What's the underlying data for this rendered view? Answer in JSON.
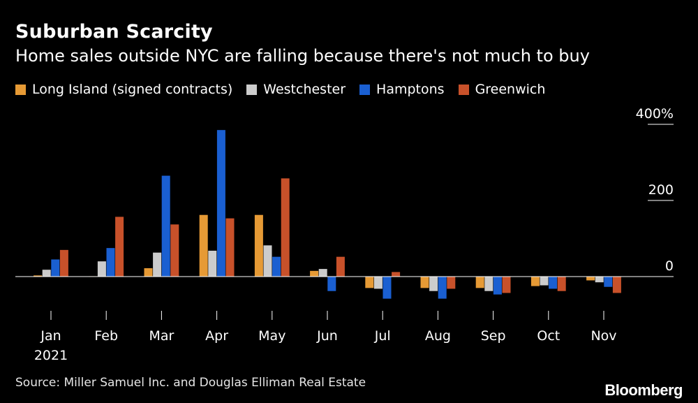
{
  "header": {
    "title": "Suburban Scarcity",
    "subtitle": "Home sales outside NYC are falling because there's not much to buy"
  },
  "legend": {
    "items": [
      {
        "label": "Long Island (signed contracts)",
        "color": "#e69a35"
      },
      {
        "label": "Westchester",
        "color": "#cccccc"
      },
      {
        "label": "Hamptons",
        "color": "#1a5fd1"
      },
      {
        "label": "Greenwich",
        "color": "#c8512a"
      }
    ]
  },
  "footer": {
    "source": "Source: Miller Samuel Inc. and Douglas Elliman Real Estate",
    "brand": "Bloomberg"
  },
  "chart_data": {
    "type": "bar",
    "title": "Suburban Scarcity",
    "subtitle": "Home sales outside NYC are falling because there's not much to buy",
    "categories": [
      "Jan",
      "Feb",
      "Mar",
      "Apr",
      "May",
      "Jun",
      "Jul",
      "Aug",
      "Sep",
      "Oct",
      "Nov"
    ],
    "year_label": "2021",
    "y_ticks": [
      {
        "value": 400,
        "label": "400%"
      },
      {
        "value": 200,
        "label": "200"
      },
      {
        "value": 0,
        "label": "0"
      }
    ],
    "ylim": [
      -120,
      400
    ],
    "series": [
      {
        "name": "Long Island (signed contracts)",
        "color": "#e69a35",
        "values": [
          3,
          1,
          22,
          162,
          162,
          15,
          -30,
          -30,
          -30,
          -25,
          -10
        ]
      },
      {
        "name": "Westchester",
        "color": "#cccccc",
        "values": [
          18,
          40,
          63,
          68,
          82,
          20,
          -32,
          -38,
          -38,
          -23,
          -15
        ]
      },
      {
        "name": "Hamptons",
        "color": "#1a5fd1",
        "values": [
          45,
          75,
          265,
          385,
          52,
          -38,
          -58,
          -58,
          -47,
          -32,
          -27
        ]
      },
      {
        "name": "Greenwich",
        "color": "#c8512a",
        "values": [
          70,
          157,
          137,
          153,
          258,
          52,
          12,
          -32,
          -43,
          -38,
          -43
        ]
      }
    ],
    "xlabel": "",
    "ylabel": "",
    "grid": false,
    "legend_position": "top-left"
  }
}
